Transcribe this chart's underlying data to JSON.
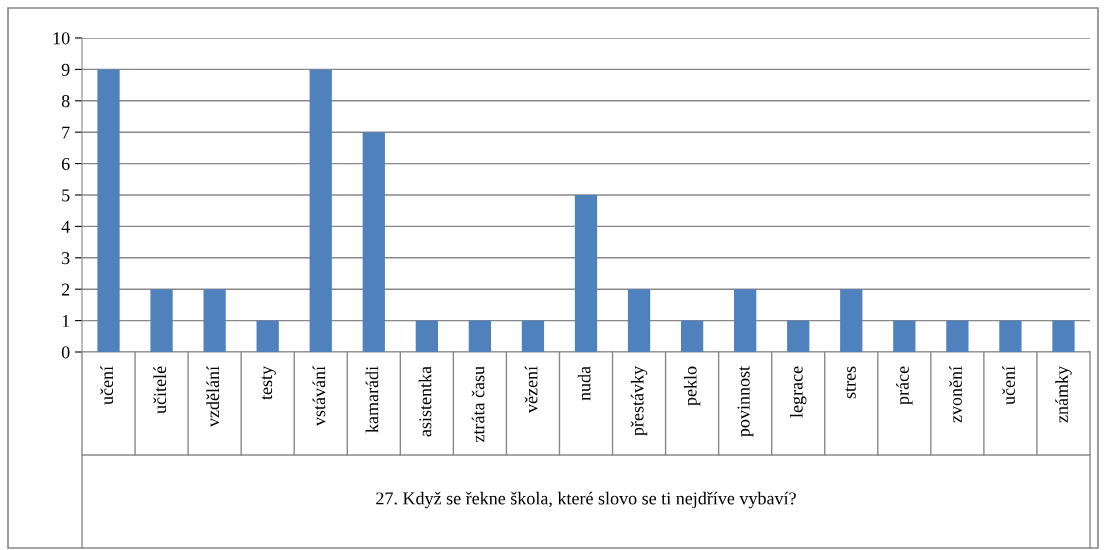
{
  "chart_data": {
    "type": "bar",
    "xlabel": "27. Když se řekne škola, které slovo se ti nejdříve vybaví?",
    "categories": [
      "učení",
      "učitelé",
      "vzdělání",
      "testy",
      "vstávání",
      "kamarádi",
      "asistentka",
      "ztráta času",
      "vězení",
      "nuda",
      "přestávky",
      "peklo",
      "povinnost",
      "legrace",
      "stres",
      "práce",
      "zvonění",
      "učení",
      "známky"
    ],
    "values": [
      9,
      2,
      2,
      1,
      9,
      7,
      1,
      1,
      1,
      5,
      2,
      1,
      2,
      1,
      2,
      1,
      1,
      1,
      1
    ],
    "color": "#4f81bd",
    "ylim": [
      0,
      10
    ],
    "yticks": [
      0,
      1,
      2,
      3,
      4,
      5,
      6,
      7,
      8,
      9,
      10
    ],
    "grid": "y",
    "legend": false
  }
}
